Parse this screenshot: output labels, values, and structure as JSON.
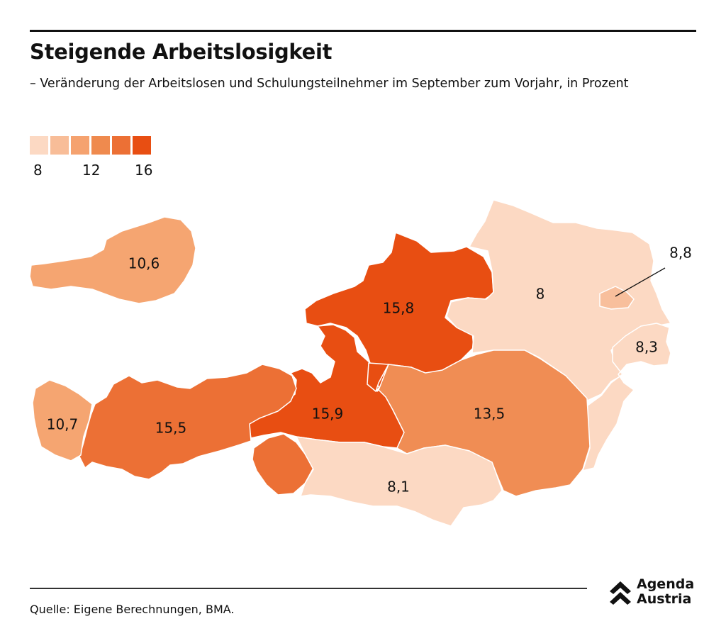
{
  "title": "Steigende Arbeitslosigkeit",
  "subtitle": "– Veränderung der Arbeitslosen und Schulungsteilnehmer im September zum Vorjahr, in Prozent",
  "legend": {
    "colors": [
      "#fcd9c3",
      "#f8bd98",
      "#f5a26f",
      "#ef8a4e",
      "#ec7035",
      "#e84e12"
    ],
    "ticks": [
      "8",
      "12",
      "16"
    ]
  },
  "map": {
    "regions": [
      {
        "name": "Österreich",
        "value": "10,6",
        "color": "#f5a571"
      },
      {
        "name": "Oberösterreich",
        "value": "15,8",
        "color": "#e84e12"
      },
      {
        "name": "Niederösterreich",
        "value": "8",
        "color": "#fcd9c3"
      },
      {
        "name": "Wien",
        "value": "8,8",
        "color": "#f8bf9c"
      },
      {
        "name": "Burgenland",
        "value": "8,3",
        "color": "#fcd9c3"
      },
      {
        "name": "Salzburg",
        "value": "15,9",
        "color": "#e84e12"
      },
      {
        "name": "Tirol",
        "value": "15,5",
        "color": "#ec7035"
      },
      {
        "name": "Vorarlberg",
        "value": "10,7",
        "color": "#f5a571"
      },
      {
        "name": "Steiermark",
        "value": "13,5",
        "color": "#f08d54"
      },
      {
        "name": "Kärnten",
        "value": "8,1",
        "color": "#fcd9c3"
      }
    ]
  },
  "footer": {
    "source": "Quelle: Eigene Berechnungen, BMA.",
    "brand_line1": "Agenda",
    "brand_line2": "Austria"
  }
}
